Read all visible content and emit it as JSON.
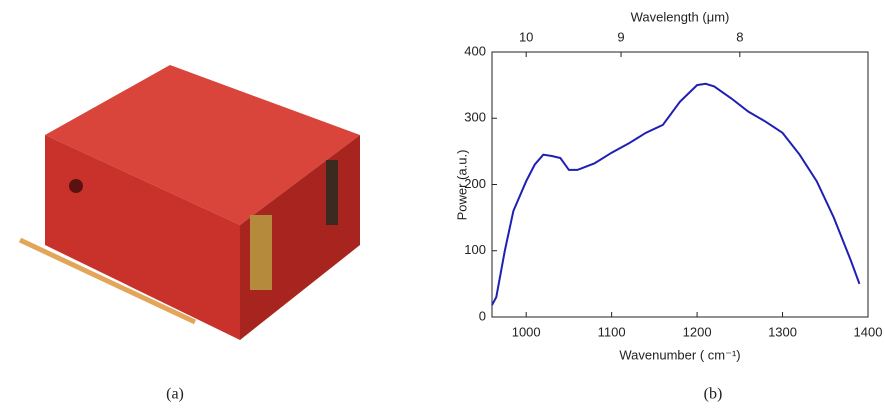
{
  "captions": [
    "(a)",
    "(b)"
  ],
  "chart_data": {
    "type": "line",
    "xlabel": "Wavenumber ( cm⁻¹)",
    "ylabel": "Power (a.u.)",
    "x2label": "Wavelength (μm)",
    "x": [
      960,
      965,
      975,
      985,
      1000,
      1010,
      1020,
      1030,
      1040,
      1050,
      1060,
      1080,
      1100,
      1120,
      1140,
      1160,
      1180,
      1200,
      1210,
      1220,
      1240,
      1260,
      1280,
      1300,
      1320,
      1340,
      1360,
      1380,
      1390
    ],
    "values": [
      18,
      30,
      100,
      160,
      205,
      230,
      245,
      243,
      240,
      222,
      222,
      232,
      248,
      262,
      278,
      290,
      325,
      350,
      352,
      348,
      330,
      310,
      295,
      278,
      245,
      205,
      150,
      85,
      50
    ],
    "color": "#1f1fb4",
    "xlim": [
      960,
      1400
    ],
    "xticks": [
      1000,
      1100,
      1200,
      1300,
      1400
    ],
    "ylim": [
      0,
      400
    ],
    "yticks": [
      0,
      100,
      200,
      300,
      400
    ],
    "x2ticks": [
      {
        "value": 1000,
        "label": "10"
      },
      {
        "value": 1111,
        "label": "9"
      },
      {
        "value": 1250,
        "label": "8"
      }
    ]
  }
}
